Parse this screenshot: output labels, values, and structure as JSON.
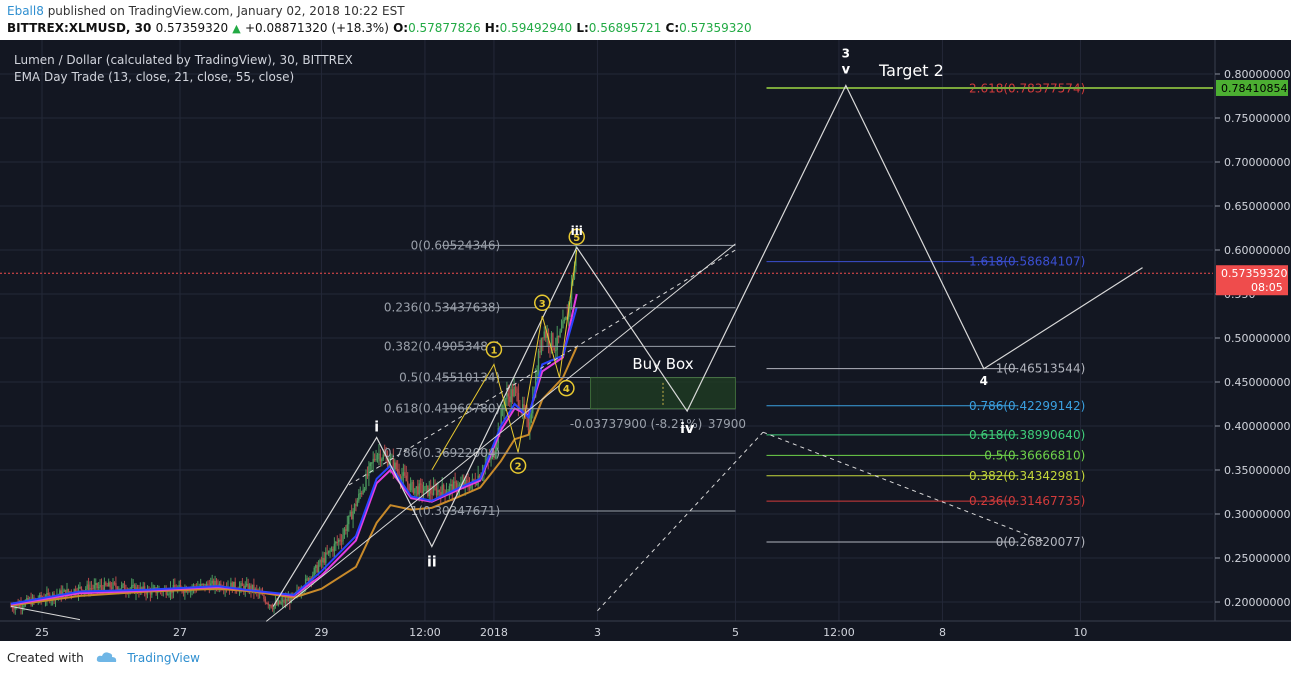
{
  "header": {
    "author": "Eball8",
    "published_text": "published on TradingView.com, January 02, 2018 10:22 EST",
    "symbol": "BITTREX:XLMUSD, 30",
    "last": "0.57359320",
    "change": "+0.08871320 (+18.3%)",
    "o_label": "O:",
    "o": "0.57877826",
    "h_label": "H:",
    "h": "0.59492940",
    "l_label": "L:",
    "l": "0.56895721",
    "c_label": "C:",
    "c": "0.57359320"
  },
  "legend": {
    "title": "Lumen / Dollar (calculated by TradingView), 30, BITTREX",
    "indicator": "EMA Day Trade (13, close, 21, close, 55, close)"
  },
  "footer": {
    "created_with": "Created with",
    "brand": "TradingView"
  },
  "colors": {
    "background": "#131722",
    "grid": "#232838",
    "candle_up": "#4c9a5e",
    "candle_down": "#b54b4b",
    "ema_fast": "#2b43ff",
    "ema_mid": "#e43ee0",
    "ema_slow": "#c88a2a",
    "wave": "#d9d9d9",
    "fib": "#9aa0aa",
    "yellow_wave": "#e8c930",
    "price_line": "#ef4c4c",
    "target_line": "#7ba83b"
  },
  "chart_data": {
    "type": "candlestick",
    "title": "Lumen / Dollar (calculated by TradingView), 30, BITTREX",
    "xlabel": "",
    "ylabel": "",
    "ylim": [
      0.18,
      0.82
    ],
    "y_ticks": [
      "0.80000000",
      "0.75000000",
      "0.70000000",
      "0.65000000",
      "0.60000000",
      "0.550",
      "0.50000000",
      "0.45000000",
      "0.40000000",
      "0.35000000",
      "0.30000000",
      "0.25000000",
      "0.20000000"
    ],
    "y_tick_values": [
      0.8,
      0.75,
      0.7,
      0.65,
      0.6,
      0.55,
      0.5,
      0.45,
      0.4,
      0.35,
      0.3,
      0.25,
      0.2
    ],
    "x_ticks": [
      "25",
      "27",
      "29",
      "12:00",
      "2018",
      "3",
      "5",
      "12:00",
      "8",
      "10"
    ],
    "x_tick_days": [
      24.95,
      26.95,
      29.0,
      30.5,
      31.5,
      33.0,
      35.0,
      36.5,
      38.0,
      40.0
    ],
    "current_price": {
      "value": 0.5735932,
      "label": "0.57359320",
      "countdown": "08:05"
    },
    "target_price": {
      "value": 0.78410854,
      "label": "0.78410854"
    },
    "price_series": {
      "x": [
        24.5,
        25.0,
        25.5,
        26.0,
        26.5,
        27.0,
        27.5,
        28.0,
        28.3,
        28.6,
        29.0,
        29.3,
        29.6,
        29.8,
        30.0,
        30.3,
        30.6,
        30.9,
        31.2,
        31.5,
        31.65,
        31.8,
        32.0,
        32.1,
        32.2,
        32.4,
        32.55,
        32.7
      ],
      "y": [
        0.195,
        0.205,
        0.215,
        0.218,
        0.212,
        0.215,
        0.22,
        0.215,
        0.195,
        0.205,
        0.245,
        0.275,
        0.33,
        0.37,
        0.36,
        0.33,
        0.325,
        0.33,
        0.335,
        0.37,
        0.43,
        0.44,
        0.4,
        0.45,
        0.51,
        0.49,
        0.52,
        0.6
      ]
    },
    "ema_fast": {
      "x": [
        24.5,
        25.5,
        26.5,
        27.5,
        28.0,
        28.6,
        29.0,
        29.5,
        29.8,
        30.0,
        30.3,
        30.6,
        31.0,
        31.3,
        31.6,
        31.8,
        32.0,
        32.2,
        32.5,
        32.7
      ],
      "y": [
        0.198,
        0.212,
        0.214,
        0.218,
        0.213,
        0.208,
        0.235,
        0.275,
        0.34,
        0.355,
        0.32,
        0.315,
        0.33,
        0.34,
        0.4,
        0.425,
        0.41,
        0.47,
        0.48,
        0.535
      ]
    },
    "ema_mid": {
      "x": [
        24.5,
        25.5,
        26.5,
        27.5,
        28.0,
        28.6,
        29.0,
        29.5,
        29.8,
        30.0,
        30.3,
        30.6,
        31.0,
        31.3,
        31.6,
        31.8,
        32.0,
        32.2,
        32.5,
        32.7
      ],
      "y": [
        0.197,
        0.21,
        0.213,
        0.217,
        0.213,
        0.207,
        0.23,
        0.27,
        0.335,
        0.35,
        0.318,
        0.314,
        0.328,
        0.338,
        0.395,
        0.42,
        0.412,
        0.462,
        0.478,
        0.55
      ]
    },
    "ema_slow": {
      "x": [
        24.5,
        25.5,
        26.5,
        27.5,
        28.0,
        28.6,
        29.0,
        29.5,
        29.8,
        30.0,
        30.3,
        30.6,
        31.0,
        31.3,
        31.6,
        31.8,
        32.0,
        32.2,
        32.5,
        32.7
      ],
      "y": [
        0.196,
        0.207,
        0.212,
        0.215,
        0.212,
        0.205,
        0.215,
        0.24,
        0.29,
        0.31,
        0.305,
        0.307,
        0.32,
        0.33,
        0.36,
        0.385,
        0.39,
        0.43,
        0.455,
        0.49
      ]
    },
    "wave_path_white": {
      "x": [
        28.3,
        29.8,
        30.6,
        32.7,
        34.3,
        36.6,
        38.6,
        40.9
      ],
      "y": [
        0.195,
        0.387,
        0.263,
        0.603,
        0.417,
        0.787,
        0.465,
        0.58
      ],
      "labels": [
        "i",
        "ii",
        "iii",
        "iv",
        "v",
        "3",
        "4"
      ]
    },
    "wave_path_yellow": {
      "x": [
        30.6,
        31.5,
        31.85,
        32.2,
        32.45,
        32.7
      ],
      "y": [
        0.35,
        0.47,
        0.37,
        0.525,
        0.455,
        0.6
      ],
      "labels": [
        "1",
        "2",
        "3",
        "4",
        "5"
      ]
    },
    "fib_retracement_1": [
      {
        "ratio": "0",
        "value": "0.60524346"
      },
      {
        "ratio": "0.236",
        "value": "0.53437638"
      },
      {
        "ratio": "0.382",
        "value": "0.49053488"
      },
      {
        "ratio": "0.5",
        "value": "0.45510134"
      },
      {
        "ratio": "0.618",
        "value": "0.41966780"
      },
      {
        "ratio": "0.786",
        "value": "0.36922004"
      },
      {
        "ratio": "1",
        "value": "0.30347671"
      }
    ],
    "fib_extension_2": [
      {
        "ratio": "2.618",
        "value": "0.78377574",
        "color": "#d23b3b"
      },
      {
        "ratio": "1.618",
        "value": "0.58684107",
        "color": "#3b4fd2"
      },
      {
        "ratio": "1",
        "value": "0.46513544",
        "color": "#b2b5be"
      },
      {
        "ratio": "0.786",
        "value": "0.42299142",
        "color": "#3aa0e0"
      },
      {
        "ratio": "0.618",
        "value": "0.38990640",
        "color": "#3fcf7a"
      },
      {
        "ratio": "0.5",
        "value": "0.36666810",
        "color": "#6fd34a"
      },
      {
        "ratio": "0.382",
        "value": "0.34342981",
        "color": "#c4d83a"
      },
      {
        "ratio": "0.236",
        "value": "0.31467735",
        "color": "#d23b3b"
      },
      {
        "ratio": "0",
        "value": "0.26820077",
        "color": "#b2b5be"
      }
    ],
    "annotations": {
      "buy_box": "Buy Box",
      "buy_box_measure": "-0.03737900 (-8.21%)",
      "buy_box_measure_tail": "37900",
      "target": "Target 2",
      "wave_labels": {
        "i": "i",
        "ii": "ii",
        "iii": "iii",
        "iv": "iv",
        "v": "v",
        "three": "3",
        "four": "4"
      },
      "yellow_labels": [
        "1",
        "2",
        "3",
        "4",
        "5"
      ]
    }
  }
}
